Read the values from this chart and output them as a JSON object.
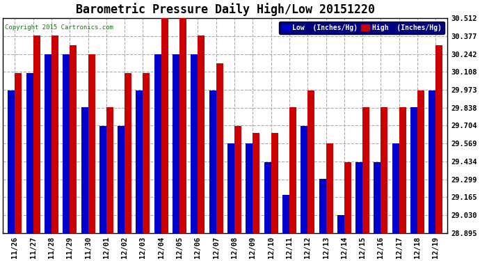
{
  "title": "Barometric Pressure Daily High/Low 20151220",
  "copyright": "Copyright 2015 Cartronics.com",
  "legend_low": "Low  (Inches/Hg)",
  "legend_high": "High  (Inches/Hg)",
  "categories": [
    "11/26",
    "11/27",
    "11/28",
    "11/29",
    "11/30",
    "12/01",
    "12/02",
    "12/03",
    "12/04",
    "12/05",
    "12/06",
    "12/07",
    "12/08",
    "12/09",
    "12/10",
    "12/11",
    "12/12",
    "12/13",
    "12/14",
    "12/15",
    "12/16",
    "12/17",
    "12/18",
    "12/19"
  ],
  "low_values": [
    29.97,
    30.1,
    30.24,
    30.24,
    29.84,
    29.7,
    29.7,
    29.97,
    30.24,
    30.24,
    30.24,
    29.97,
    29.57,
    29.57,
    29.43,
    29.18,
    29.7,
    29.3,
    29.03,
    29.43,
    29.43,
    29.57,
    29.84,
    29.97
  ],
  "high_values": [
    30.1,
    30.38,
    30.38,
    30.31,
    30.24,
    29.84,
    30.1,
    30.1,
    30.51,
    30.51,
    30.38,
    30.17,
    29.7,
    29.65,
    29.65,
    29.84,
    29.97,
    29.57,
    29.43,
    29.84,
    29.84,
    29.84,
    29.97,
    30.31
  ],
  "ylim_min": 28.895,
  "ylim_max": 30.512,
  "yticks": [
    28.895,
    29.03,
    29.165,
    29.299,
    29.434,
    29.569,
    29.704,
    29.838,
    29.973,
    30.108,
    30.242,
    30.377,
    30.512
  ],
  "low_color": "#0000cc",
  "high_color": "#cc0000",
  "bg_color": "#ffffff",
  "grid_color": "#aaaaaa",
  "title_fontsize": 12,
  "bar_width": 0.38
}
